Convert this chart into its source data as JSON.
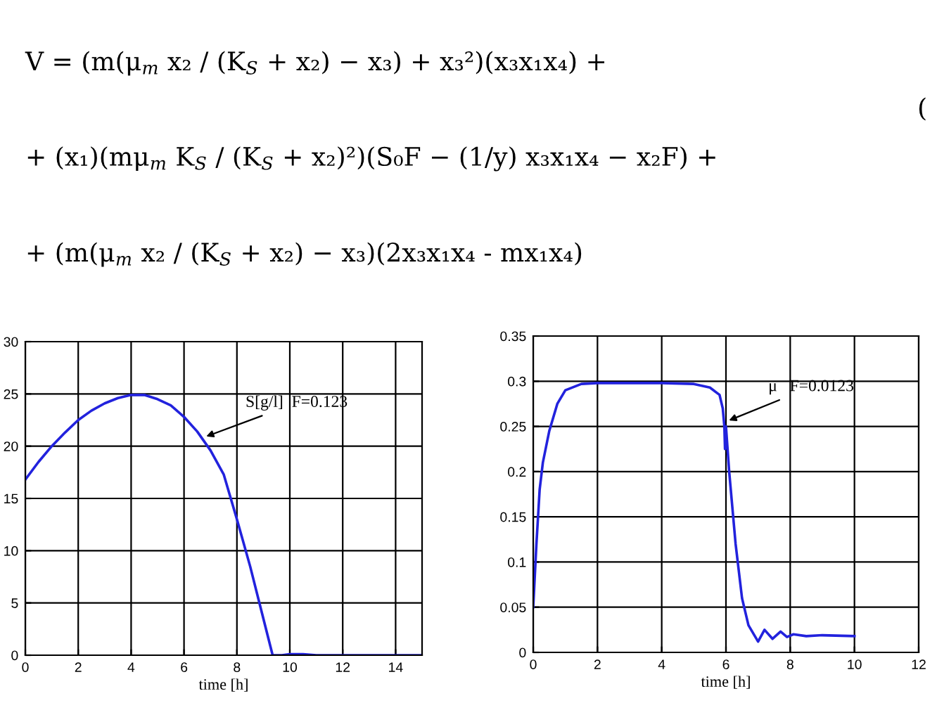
{
  "chart_data": [
    {
      "type": "line",
      "xlabel": "time [h]",
      "xlim": [
        0,
        15
      ],
      "xticks": [
        0,
        2,
        4,
        6,
        8,
        10,
        12,
        14
      ],
      "ylim": [
        0,
        30
      ],
      "yticks": [
        0,
        5,
        10,
        15,
        20,
        25,
        30
      ],
      "grid": true,
      "series": [
        {
          "color": "#2222dd",
          "x": [
            0,
            0.5,
            1,
            1.5,
            2,
            2.5,
            3,
            3.5,
            4,
            4.5,
            5,
            5.5,
            6,
            6.5,
            7,
            7.5,
            8,
            8.5,
            9,
            9.35,
            9.7,
            10,
            10.5,
            11,
            15
          ],
          "values": [
            16.8,
            18.5,
            20,
            21.3,
            22.5,
            23.4,
            24.1,
            24.6,
            24.9,
            24.9,
            24.5,
            23.9,
            22.8,
            21.4,
            19.6,
            17.3,
            13,
            8.5,
            3.5,
            0,
            0,
            0.1,
            0.1,
            0,
            0
          ]
        }
      ],
      "annotations": [
        "V = (m(μ$_{m}$ x₂ / (K$_{S}$ + x₂) − x₃) + x₃²)(x₃x₁x₄) +",
        "+ (x₁)(mμ$_{m}$ K$_{S}$ / (K$_{S}$ + x₂)²)(S₀F − (1/y) x₃x₁x₄ − x₂F) +",
        "+ (m(μ$_{m}$ x₂ / (K$_{S}$ + x₂) − x₃)(2x₃x₁x₄ - mx₁x₄)",
        "(",
        {
          "text": "S[g/l]  F=0.123",
          "x": 6.7,
          "y": 20.8
        }
      ]
    },
    {
      "type": "line",
      "xlabel": "time [h]",
      "xlim": [
        0,
        12
      ],
      "xticks": [
        0,
        2,
        4,
        6,
        8,
        10,
        12
      ],
      "ylim": [
        0,
        0.35
      ],
      "yticks": [
        0,
        0.05,
        0.1,
        0.15,
        0.2,
        0.25,
        0.3,
        0.35
      ],
      "grid": true,
      "series": [
        {
          "color": "#2222dd",
          "x": [
            0,
            0.1,
            0.2,
            0.3,
            0.5,
            0.75,
            1,
            1.5,
            2,
            3,
            4,
            5,
            5.5,
            5.8,
            5.9,
            5.95,
            5.97,
            6,
            6.1,
            6.3,
            6.5,
            6.7,
            7,
            7.2,
            7.45,
            7.7,
            7.9,
            8.1,
            8.5,
            9,
            10
          ],
          "values": [
            0.05,
            0.12,
            0.18,
            0.21,
            0.245,
            0.275,
            0.29,
            0.297,
            0.298,
            0.298,
            0.298,
            0.297,
            0.293,
            0.285,
            0.27,
            0.25,
            0.225,
            0.25,
            0.2,
            0.12,
            0.06,
            0.03,
            0.012,
            0.025,
            0.015,
            0.023,
            0.017,
            0.02,
            0.018,
            0.019,
            0.018
          ]
        }
      ],
      "annotations": [
        {
          "text": "μ   F=0.0123",
          "x": 5.98,
          "y": 0.255
        }
      ]
    }
  ]
}
